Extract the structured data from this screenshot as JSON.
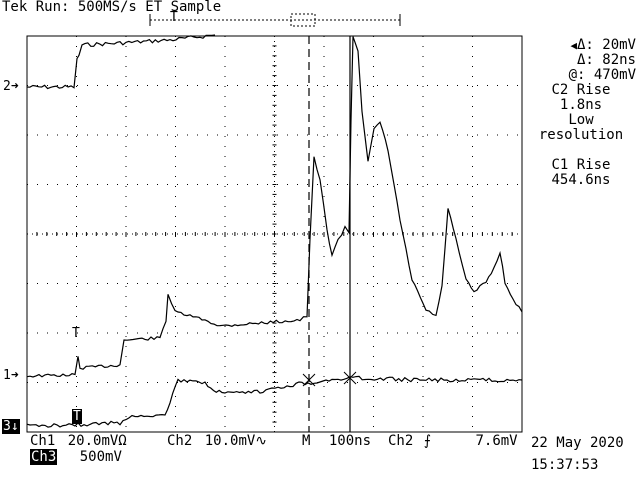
{
  "header": {
    "title": "Tek Run: 500MS/s ET Sample"
  },
  "ground_markers": [
    {
      "label": "2"
    },
    {
      "label": "1"
    },
    {
      "label": "3"
    }
  ],
  "trigger_markers": {
    "top": "T",
    "ch1": "T",
    "ch3": "T"
  },
  "cursor_readout": {
    "delta_v": "Δ: 20mV",
    "delta_t": "Δ: 82ns",
    "at_v": "@: 470mV"
  },
  "measurements": {
    "c2_rise_label": "C2 Rise",
    "c2_rise_value": "1.8ns",
    "c2_note1": "Low",
    "c2_note2": "resolution",
    "c1_rise_label": "C1 Rise",
    "c1_rise_value": "454.6ns"
  },
  "status_bar": {
    "ch1_label": "Ch1",
    "ch1_scale": "20.0mVΩ",
    "ch2_label": "Ch2",
    "ch2_scale": "10.0mV∿",
    "timebase_label": "M",
    "timebase_value": "100ns",
    "trigger_source": "Ch2",
    "trigger_slope": "⨍",
    "trigger_level": "7.6mV",
    "ch3_label": "Ch3",
    "ch3_scale": "500mV",
    "date": "22 May 2020",
    "time": "15:37:53"
  },
  "colors": {
    "background": "#ffffff",
    "trace": "#000000"
  }
}
